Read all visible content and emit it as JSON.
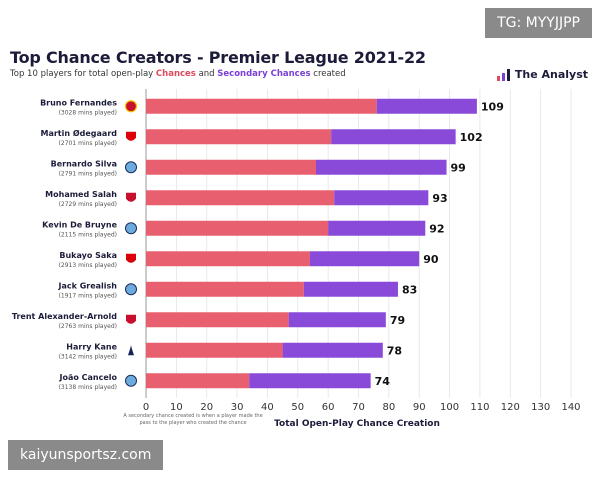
{
  "watermarks": {
    "top_right": "TG: MYYJJPP",
    "bottom_left": "kaiyunsportsz.com"
  },
  "header": {
    "title": "Top Chance Creators - Premier League 2021-22",
    "subtitle_prefix": "Top 10 players for total open-play ",
    "subtitle_chances": "Chances",
    "subtitle_and": " and ",
    "subtitle_secondary": "Secondary Chances",
    "subtitle_suffix": " created",
    "brand": "The Analyst"
  },
  "footnote": "A secondary chance created is when a player made the pass to the player who created the chance",
  "colors": {
    "chances": "#e8606f",
    "secondary": "#8a4ad9",
    "text": "#1c1c3a",
    "grid": "#e4e4e4"
  },
  "chart_data": {
    "type": "bar",
    "orientation": "horizontal",
    "stacked": true,
    "title": "Top Chance Creators - Premier League 2021-22",
    "xlabel": "Total Open-Play Chance Creation",
    "xlim": [
      0,
      140
    ],
    "xticks": [
      0,
      10,
      20,
      30,
      40,
      50,
      60,
      70,
      80,
      90,
      100,
      110,
      120,
      130,
      140
    ],
    "categories": [
      "Bruno Fernandes",
      "Martin Ødegaard",
      "Bernardo Silva",
      "Mohamed Salah",
      "Kevin De Bruyne",
      "Bukayo Saka",
      "Jack Grealish",
      "Trent Alexander-Arnold",
      "Harry Kane",
      "João Cancelo"
    ],
    "minutes": [
      "(3028 mins played)",
      "(2701 mins played)",
      "(2791 mins played)",
      "(2729 mins played)",
      "(2115 mins played)",
      "(2913 mins played)",
      "(1917 mins played)",
      "(2763 mins played)",
      "(3142 mins played)",
      "(3138 mins played)"
    ],
    "clubs": [
      "Manchester United",
      "Arsenal",
      "Manchester City",
      "Liverpool",
      "Manchester City",
      "Arsenal",
      "Manchester City",
      "Liverpool",
      "Tottenham Hotspur",
      "Manchester City"
    ],
    "series": [
      {
        "name": "Chances",
        "values": [
          76,
          61,
          56,
          62,
          60,
          54,
          52,
          47,
          45,
          34
        ]
      },
      {
        "name": "Secondary Chances",
        "values": [
          33,
          41,
          43,
          31,
          32,
          36,
          31,
          32,
          33,
          40
        ]
      }
    ],
    "totals": [
      109,
      102,
      99,
      93,
      92,
      90,
      83,
      79,
      78,
      74
    ]
  }
}
